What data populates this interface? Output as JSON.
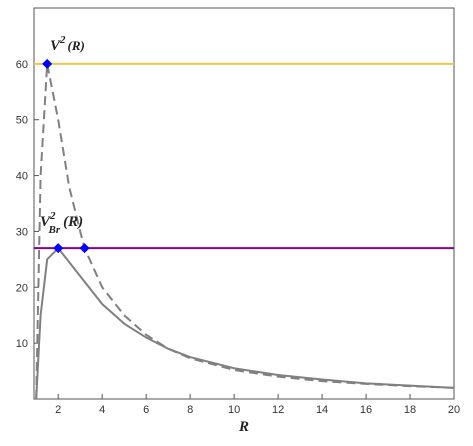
{
  "chart_data": {
    "type": "line",
    "x_label": "R",
    "xlim": [
      0.9,
      20
    ],
    "ylim": [
      0,
      70
    ],
    "xticks": [
      2,
      4,
      6,
      8,
      10,
      12,
      14,
      16,
      18,
      20
    ],
    "yticks": [
      10,
      20,
      30,
      40,
      50,
      60
    ],
    "grid": false,
    "series": [
      {
        "color": "#f7c24a",
        "style": "solid",
        "x": [
          0.9,
          20
        ],
        "values": [
          60,
          60
        ]
      },
      {
        "color": "#8b008b",
        "style": "solid",
        "x": [
          0.9,
          20
        ],
        "values": [
          27,
          27
        ]
      },
      {
        "color": "#808080",
        "style": "dashed",
        "x": [
          1,
          1.2,
          1.5,
          2,
          2.5,
          3,
          3.2,
          4,
          5,
          6,
          7,
          8,
          10,
          12,
          14,
          16,
          18,
          20
        ],
        "values": [
          0,
          40,
          60,
          50,
          38,
          30,
          27,
          20,
          15,
          11.5,
          9,
          7.3,
          5.2,
          4,
          3.2,
          2.7,
          2.3,
          2.0
        ]
      },
      {
        "color": "#808080",
        "style": "solid",
        "x": [
          1,
          1.2,
          1.5,
          2,
          3,
          4,
          5,
          6,
          7,
          8,
          10,
          12,
          14,
          16,
          18,
          20
        ],
        "values": [
          0,
          15,
          25,
          27,
          22,
          17,
          13.5,
          11,
          9,
          7.5,
          5.5,
          4.3,
          3.5,
          2.8,
          2.4,
          2.0
        ]
      }
    ],
    "points": {
      "color": "#0000ff",
      "x": [
        1.5,
        2,
        3.2
      ],
      "values": [
        60,
        27,
        27
      ]
    },
    "annotations": [
      {
        "base": "V",
        "sup": "2",
        "arg": "(R)"
      },
      {
        "base": "V",
        "sup": "2",
        "sub": "Br",
        "arg": "(R)"
      }
    ]
  }
}
